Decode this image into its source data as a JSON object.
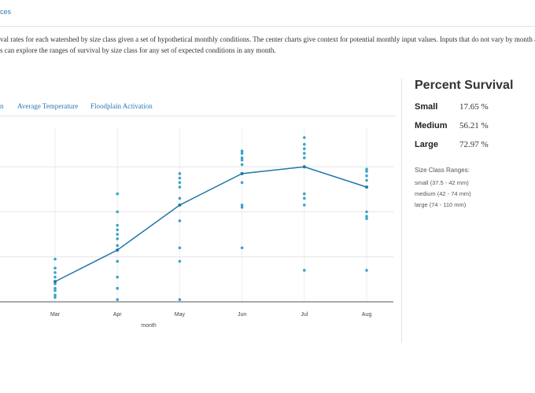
{
  "nav": {
    "link": "ces"
  },
  "description": [
    "val rates for each watershed by size class given a set of hypothetical monthly conditions. The center charts give context for potential monthly input values. Inputs that do not vary by month are set",
    "s can explore the ranges of survival by size class for any set of expected conditions in any month."
  ],
  "tabs": [
    "n",
    "Average Temperature",
    "Floodplain Activation"
  ],
  "chart_data": {
    "type": "line",
    "x_label": "month",
    "categories": [
      "Mar",
      "Apr",
      "May",
      "Jun",
      "Jul",
      "Aug"
    ],
    "series": [
      {
        "color": "#1f77a8",
        "values": [
          0.09,
          0.23,
          0.43,
          0.57,
          0.6,
          0.51
        ]
      }
    ],
    "points": [
      [
        0.19,
        0.15,
        0.13,
        0.11,
        0.09,
        0.08,
        0.06,
        0.05,
        0.03,
        0.02
      ],
      [
        0.48,
        0.4,
        0.34,
        0.32,
        0.3,
        0.28,
        0.25,
        0.23,
        0.18,
        0.11,
        0.06,
        0.01
      ],
      [
        0.57,
        0.55,
        0.53,
        0.51,
        0.46,
        0.43,
        0.36,
        0.24,
        0.18,
        0.01
      ],
      [
        0.67,
        0.66,
        0.64,
        0.63,
        0.61,
        0.57,
        0.53,
        0.43,
        0.42,
        0.24
      ],
      [
        0.73,
        0.7,
        0.68,
        0.66,
        0.64,
        0.6,
        0.48,
        0.46,
        0.43,
        0.14
      ],
      [
        0.59,
        0.58,
        0.56,
        0.54,
        0.51,
        0.4,
        0.38,
        0.37,
        0.14
      ]
    ],
    "point_color": "#3aa3c9",
    "ylim": [
      0,
      0.8
    ],
    "yticks": [
      0,
      0.2,
      0.4,
      0.6
    ],
    "grid": true
  },
  "panel": {
    "title": "Percent Survival",
    "rows": [
      {
        "label": "Small",
        "value": "17.65 %"
      },
      {
        "label": "Medium",
        "value": "56.21 %"
      },
      {
        "label": "Large",
        "value": "72.97 %"
      }
    ],
    "ranges_title": "Size Class Ranges:",
    "ranges": [
      "small (37.5 - 42 mm)",
      "medium (42 - 74 mm)",
      "large (74 - 110 mm)"
    ]
  }
}
